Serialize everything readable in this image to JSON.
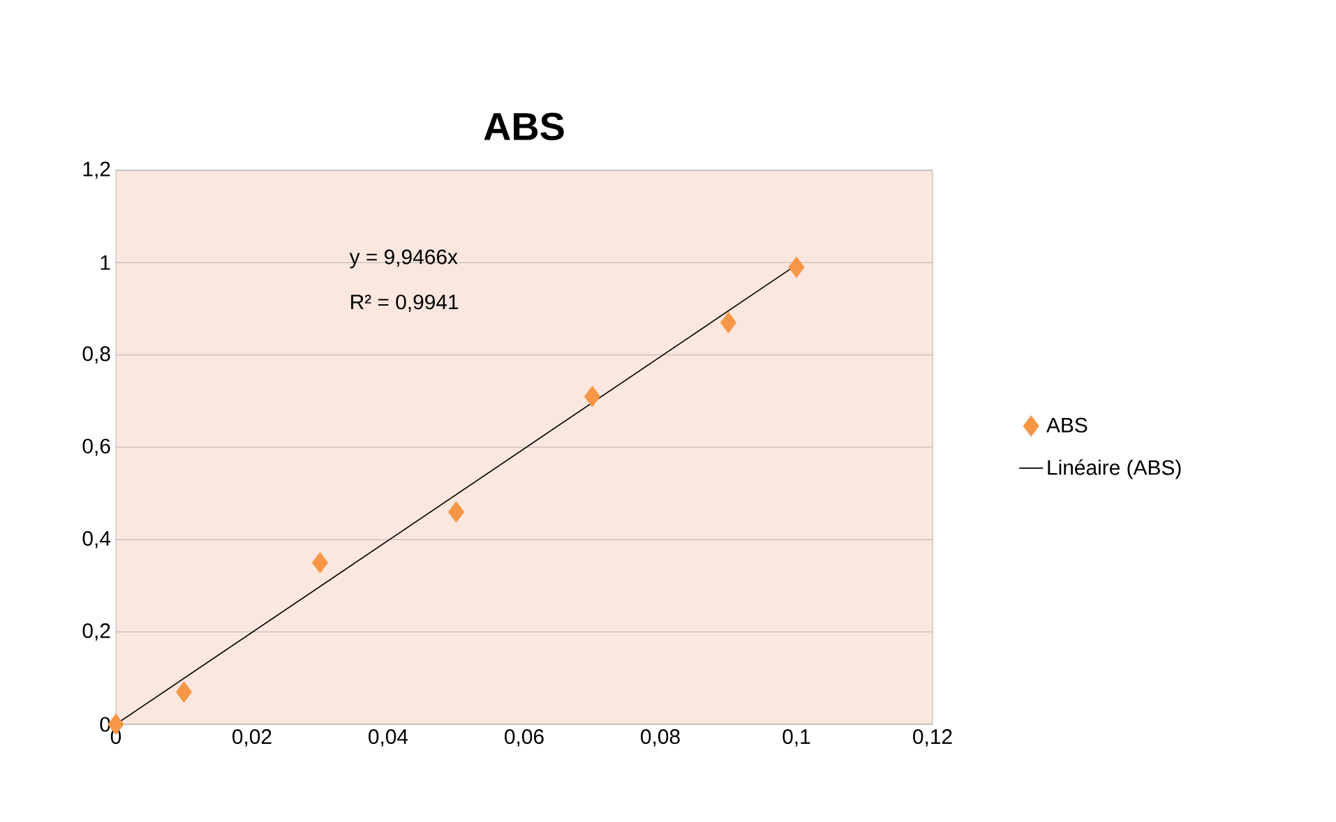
{
  "chart_data": {
    "type": "scatter",
    "title": "ABS",
    "series": [
      {
        "name": "ABS",
        "type": "scatter",
        "color": "#f79646",
        "marker": "diamond",
        "x": [
          0,
          0.01,
          0.03,
          0.05,
          0.07,
          0.09,
          0.1
        ],
        "values": [
          0,
          0.07,
          0.35,
          0.46,
          0.71,
          0.87,
          0.99
        ]
      },
      {
        "name": "Linéaire (ABS)",
        "type": "line",
        "color": "#000000",
        "marker": "none",
        "line_style": "solid",
        "x": [
          0,
          0.1
        ],
        "values": [
          0,
          0.995
        ]
      }
    ],
    "annotations": [
      "y = 9,9466x",
      "R² = 0,9941"
    ],
    "xlim": [
      0,
      0.12
    ],
    "ylim": [
      0,
      1.2
    ],
    "xticks": [
      0,
      {
        "value": 0.02,
        "label": "0,02"
      },
      {
        "value": 0.04,
        "label": "0,04"
      },
      {
        "value": 0.06,
        "label": "0,06"
      },
      {
        "value": 0.08,
        "label": "0,08"
      },
      {
        "value": 0.1,
        "label": "0,1"
      },
      {
        "value": 0.12,
        "label": "0,12"
      }
    ],
    "yticks": [
      0,
      {
        "value": 0.2,
        "label": "0,2"
      },
      {
        "value": 0.4,
        "label": "0,4"
      },
      {
        "value": 0.6,
        "label": "0,6"
      },
      {
        "value": 0.8,
        "label": "0,8"
      },
      1,
      {
        "value": 1.2,
        "label": "1,2"
      }
    ],
    "grid": "y",
    "legend": "right"
  }
}
